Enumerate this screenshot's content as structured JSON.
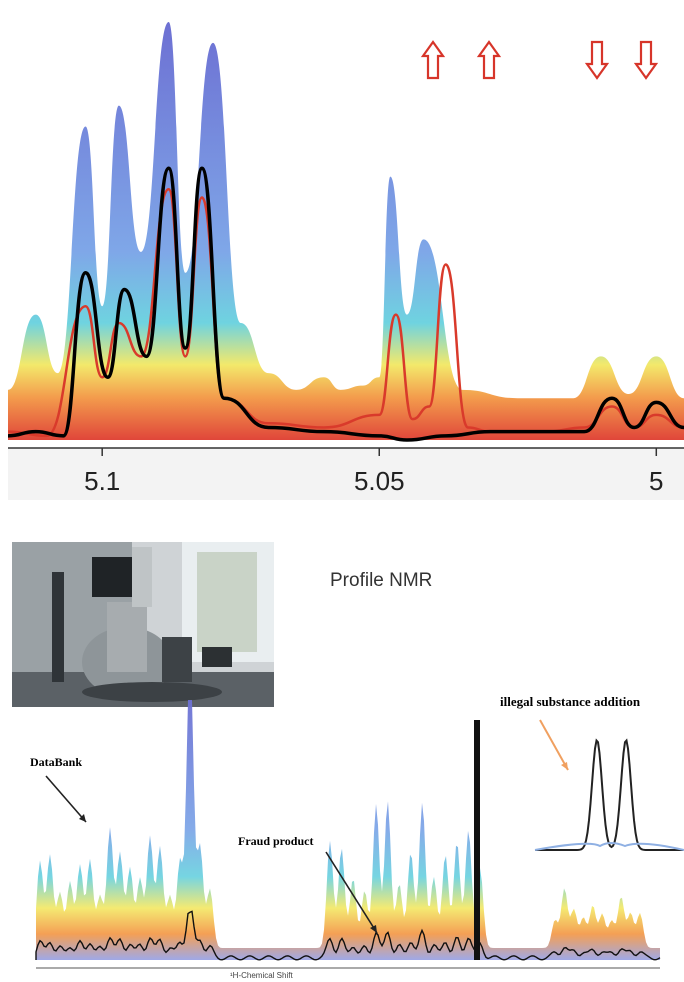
{
  "chart_data": [
    {
      "type": "area",
      "panel": "spectrum-zoom",
      "x_axis": {
        "reversed": true,
        "ticks": [
          5.1,
          5.05,
          5
        ],
        "xlim": [
          5.117,
          4.995
        ]
      },
      "series": [
        {
          "values_x": [
            5.117,
            5.112,
            5.108,
            5.103,
            5.1,
            5.097,
            5.093,
            5.088,
            5.085,
            5.08,
            5.075,
            5.07,
            5.065,
            5.06,
            5.057,
            5.053,
            5.05,
            5.048,
            5.045,
            5.042,
            5.035,
            5.025,
            5.015,
            5.01,
            5.005,
            5.0,
            4.995
          ],
          "values_y": [
            0.12,
            0.3,
            0.16,
            0.75,
            0.32,
            0.8,
            0.45,
            1.0,
            0.4,
            0.95,
            0.28,
            0.16,
            0.12,
            0.15,
            0.12,
            0.13,
            0.15,
            0.63,
            0.3,
            0.48,
            0.12,
            0.1,
            0.1,
            0.2,
            0.11,
            0.2,
            0.1
          ]
        },
        {
          "values_x": [
            5.117,
            5.112,
            5.107,
            5.103,
            5.099,
            5.096,
            5.092,
            5.088,
            5.085,
            5.082,
            5.078,
            5.07,
            5.06,
            5.05,
            5.045,
            5.038,
            5.03,
            5.02,
            5.013,
            5.008,
            5.004,
            5.0,
            4.995
          ],
          "values_y": [
            0.01,
            0.02,
            0.01,
            0.4,
            0.15,
            0.36,
            0.2,
            0.65,
            0.22,
            0.65,
            0.1,
            0.03,
            0.02,
            0.01,
            0.0,
            0.01,
            0.02,
            0.02,
            0.02,
            0.1,
            0.03,
            0.09,
            0.03
          ]
        },
        {
          "values_x": [
            5.117,
            5.11,
            5.103,
            5.1,
            5.097,
            5.093,
            5.088,
            5.085,
            5.082,
            5.078,
            5.07,
            5.06,
            5.05,
            5.047,
            5.044,
            5.041,
            5.038,
            5.034,
            5.03,
            5.02,
            5.013,
            5.008,
            5.004,
            5.0,
            4.995
          ],
          "values_y": [
            0.02,
            0.01,
            0.32,
            0.15,
            0.28,
            0.2,
            0.6,
            0.2,
            0.58,
            0.1,
            0.04,
            0.03,
            0.06,
            0.3,
            0.05,
            0.08,
            0.42,
            0.03,
            0.02,
            0.02,
            0.03,
            0.08,
            0.03,
            0.06,
            0.03
          ]
        }
      ]
    },
    {
      "type": "area",
      "panel": "spectrum-full",
      "annotations": [
        "DataBank",
        "Fraud product",
        "illegal substance addition"
      ],
      "xlabel": "¹H-Chemical Shift"
    }
  ],
  "arrows": [
    "up",
    "up",
    "down",
    "down"
  ],
  "texts": {
    "profile_title": "Profile NMR",
    "databank": "DataBank",
    "fraud": "Fraud product",
    "illegal": "illegal substance addition",
    "xlabel": "¹H-Chemical Shift"
  },
  "colors": {
    "envelope": "#7b7fd6",
    "highlight_red": "#d93a2b",
    "black_trace": "#000000",
    "arrow": "#d7352a"
  },
  "icons": [
    "nmr-spectrometer-photo",
    "arrow-up-icon",
    "arrow-down-icon"
  ]
}
